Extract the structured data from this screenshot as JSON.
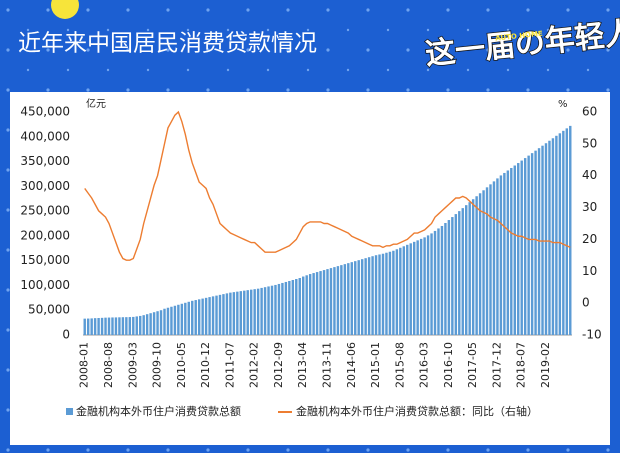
{
  "header": {
    "title": "近年来中国居民消费贷款情况",
    "logo": "这一届の年轻人",
    "logo_tag": "AUTO HOME"
  },
  "chart_data": {
    "type": "bar",
    "y_unit": "亿元",
    "y2_unit": "%",
    "categories": [
      "2008-01",
      null,
      null,
      null,
      null,
      null,
      null,
      "2008-08",
      null,
      null,
      null,
      null,
      null,
      null,
      "2009-03",
      null,
      null,
      null,
      null,
      null,
      null,
      "2009-10",
      null,
      null,
      null,
      null,
      null,
      null,
      "2010-05",
      null,
      null,
      null,
      null,
      null,
      null,
      "2010-12",
      null,
      null,
      null,
      null,
      null,
      null,
      "2011-07",
      null,
      null,
      null,
      null,
      null,
      null,
      "2012-02",
      null,
      null,
      null,
      null,
      null,
      null,
      "2012-09",
      null,
      null,
      null,
      null,
      null,
      null,
      "2013-04",
      null,
      null,
      null,
      null,
      null,
      null,
      "2013-11",
      null,
      null,
      null,
      null,
      null,
      null,
      "2014-06",
      null,
      null,
      null,
      null,
      null,
      null,
      "2015-01",
      null,
      null,
      null,
      null,
      null,
      null,
      "2015-08",
      null,
      null,
      null,
      null,
      null,
      null,
      "2016-03",
      null,
      null,
      null,
      null,
      null,
      null,
      "2016-10",
      null,
      null,
      null,
      null,
      null,
      null,
      "2017-05",
      null,
      null,
      null,
      null,
      null,
      null,
      "2017-12",
      null,
      null,
      null,
      null,
      null,
      null,
      "2018-07",
      null,
      null,
      null,
      null,
      null,
      null,
      "2019-02",
      null,
      null,
      null,
      null,
      null,
      null,
      null
    ],
    "series": [
      {
        "name": "金融机构本外币住户消费贷款总额",
        "color": "#5b9bd5",
        "values": [
          33000,
          33200,
          33500,
          34000,
          34300,
          34600,
          35000,
          35200,
          35400,
          35500,
          35700,
          35900,
          36000,
          36200,
          36500,
          37500,
          38500,
          40000,
          42000,
          44000,
          46000,
          48000,
          50000,
          53000,
          55000,
          57000,
          59000,
          61000,
          63000,
          65000,
          67000,
          69000,
          70500,
          72000,
          73500,
          75000,
          76500,
          78000,
          79500,
          81000,
          82500,
          84000,
          85500,
          86500,
          87500,
          88500,
          89500,
          90500,
          91500,
          92500,
          93500,
          95000,
          96500,
          98000,
          99500,
          101000,
          103000,
          105000,
          107000,
          109000,
          111000,
          113000,
          115000,
          118000,
          120500,
          123000,
          125000,
          127000,
          129000,
          131000,
          133000,
          135000,
          137000,
          139000,
          141000,
          143000,
          145000,
          147000,
          149000,
          151000,
          153000,
          155000,
          157000,
          159000,
          161000,
          162500,
          164000,
          166000,
          168000,
          170000,
          173000,
          176000,
          179000,
          182000,
          185000,
          188000,
          191000,
          194000,
          197000,
          201000,
          205000,
          210000,
          215000,
          220000,
          226000,
          232000,
          238000,
          244000,
          250000,
          256000,
          262000,
          268000,
          274000,
          280000,
          286000,
          292000,
          298000,
          304000,
          310000,
          316000,
          322000,
          327000,
          332000,
          337000,
          342000,
          347000,
          352000,
          357000,
          362000,
          367000,
          372000,
          377000,
          382000,
          387000,
          392000,
          397000,
          402000,
          407000,
          412000,
          417000,
          422000
        ]
      },
      {
        "name": "金融机构本外币住户消费贷款总额：同比（右轴）",
        "color": "#ed7d31",
        "axis": "y2",
        "values": [
          36,
          34.5,
          33,
          31,
          29,
          28,
          27,
          25,
          22,
          19,
          16,
          14,
          13.5,
          13.5,
          14,
          17,
          20,
          25,
          29,
          33,
          37,
          40,
          45,
          50,
          55,
          57,
          59,
          60,
          57,
          53,
          48,
          44,
          41,
          38,
          37,
          36,
          33,
          31,
          28,
          25,
          24,
          23,
          22,
          21.5,
          21,
          20.5,
          20,
          19.5,
          19,
          19,
          18,
          17,
          16,
          16,
          16,
          16,
          16.5,
          17,
          17.5,
          18,
          19,
          20,
          22,
          24,
          25,
          25.5,
          25.5,
          25.5,
          25.5,
          25,
          25,
          24.5,
          24,
          23.5,
          23,
          22.5,
          22,
          21,
          20.5,
          20,
          19.5,
          19,
          18.5,
          18,
          18,
          18,
          17.5,
          18,
          18,
          18.5,
          18.5,
          19,
          19.5,
          20,
          21,
          22,
          22,
          22.5,
          23,
          24,
          25,
          27,
          28,
          29,
          30,
          31,
          32,
          33,
          33,
          33.5,
          33,
          32,
          31,
          30,
          29,
          28.5,
          28,
          27,
          26.5,
          26,
          25,
          24,
          23,
          22,
          21.5,
          21,
          21,
          20.5,
          20,
          20,
          20,
          19.5,
          19.5,
          19.5,
          19.5,
          19,
          19,
          19,
          18.5,
          18,
          17.5
        ]
      }
    ],
    "ylim": [
      0,
      450000
    ],
    "yticks": [
      0,
      {
        "value": 50000,
        "label": "50,000"
      },
      {
        "value": 100000,
        "label": "100,000"
      },
      {
        "value": 150000,
        "label": "150,000"
      },
      {
        "value": 200000,
        "label": "200,000"
      },
      {
        "value": 250000,
        "label": "250,000"
      },
      {
        "value": 300000,
        "label": "300,000"
      },
      {
        "value": 350000,
        "label": "350,000"
      },
      {
        "value": 400000,
        "label": "400,000"
      },
      {
        "value": 450000,
        "label": "450,000"
      }
    ],
    "y2lim": [
      -10,
      60
    ],
    "y2ticks": [
      -10,
      0,
      10,
      20,
      30,
      40,
      50,
      60
    ],
    "grid": false
  }
}
